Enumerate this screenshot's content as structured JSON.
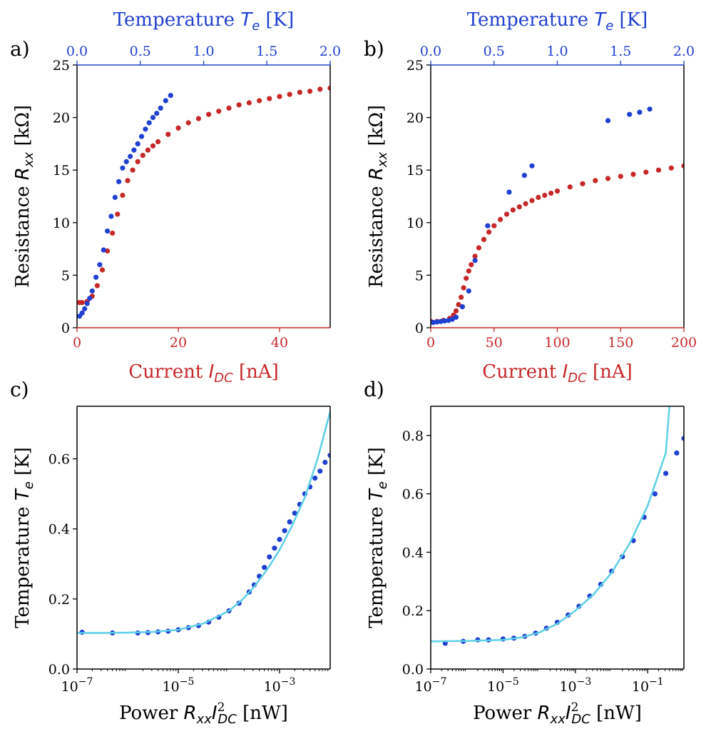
{
  "colors": {
    "red": "#c62828",
    "blue": "#2040d0",
    "cyan": "#5ccfe6",
    "black": "#000000"
  },
  "chart_data": [
    {
      "panel": "a)",
      "type": "scatter",
      "xlabel": "Current",
      "xlabel_sym": "I",
      "xlabel_sub": "DC",
      "xlabel_unit": "[nA]",
      "ylabel": "Resistance",
      "ylabel_sym": "R",
      "ylabel_sub": "xx",
      "ylabel_unit": "[kΩ]",
      "toplabel": "Temperature",
      "toplabel_sym": "T",
      "toplabel_sub": "e",
      "toplabel_unit": "[K]",
      "xlim": [
        0,
        50
      ],
      "ylim": [
        0,
        25
      ],
      "toplim": [
        0,
        2
      ],
      "xticks": [
        "0",
        "20",
        "40"
      ],
      "yticks": [
        "0",
        "5",
        "10",
        "15",
        "20",
        "25"
      ],
      "topticks": [
        "0.0",
        "0.5",
        "1.0",
        "1.5",
        "2.0"
      ],
      "series": [
        {
          "name": "R vs I_DC",
          "color": "red",
          "x": [
            0.5,
            1,
            2,
            3,
            4,
            5,
            6,
            7,
            8,
            9,
            10,
            11,
            12,
            13,
            14,
            15,
            16,
            18,
            20,
            22,
            24,
            26,
            28,
            30,
            32,
            34,
            36,
            38,
            40,
            42,
            44,
            46,
            48,
            50
          ],
          "y": [
            2.4,
            2.4,
            2.5,
            3.0,
            4.0,
            5.5,
            7.3,
            9.0,
            10.8,
            12.6,
            14.0,
            15.0,
            15.8,
            16.4,
            16.9,
            17.3,
            17.7,
            18.4,
            19.0,
            19.5,
            19.9,
            20.3,
            20.6,
            20.9,
            21.2,
            21.4,
            21.6,
            21.8,
            22.0,
            22.2,
            22.4,
            22.5,
            22.7,
            22.8
          ]
        },
        {
          "name": "R vs T_e",
          "color": "blue",
          "x_top": [
            0.02,
            0.04,
            0.06,
            0.08,
            0.1,
            0.12,
            0.15,
            0.18,
            0.21,
            0.24,
            0.27,
            0.3,
            0.33,
            0.36,
            0.39,
            0.42,
            0.45,
            0.48,
            0.51,
            0.54,
            0.57,
            0.6,
            0.63,
            0.66,
            0.7,
            0.74
          ],
          "y": [
            1.1,
            1.4,
            1.8,
            2.3,
            2.8,
            3.5,
            4.8,
            6.0,
            7.4,
            9.2,
            10.6,
            12.4,
            13.9,
            15.2,
            15.8,
            16.3,
            16.9,
            17.5,
            18.2,
            18.9,
            19.5,
            20.0,
            20.4,
            20.9,
            21.6,
            22.1
          ]
        }
      ]
    },
    {
      "panel": "b)",
      "type": "scatter",
      "xlabel": "Current",
      "xlabel_sym": "I",
      "xlabel_sub": "DC",
      "xlabel_unit": "[nA]",
      "ylabel": "Resistance",
      "ylabel_sym": "R",
      "ylabel_sub": "xx",
      "ylabel_unit": "[kΩ]",
      "toplabel": "Temperature",
      "toplabel_sym": "T",
      "toplabel_sub": "e",
      "toplabel_unit": "[K]",
      "xlim": [
        0,
        200
      ],
      "ylim": [
        0,
        25
      ],
      "toplim": [
        0,
        2
      ],
      "xticks": [
        "0",
        "50",
        "100",
        "150",
        "200"
      ],
      "yticks": [
        "0",
        "5",
        "10",
        "15",
        "20",
        "25"
      ],
      "topticks": [
        "0.0",
        "0.5",
        "1.0",
        "1.5",
        "2.0"
      ],
      "series": [
        {
          "name": "R vs I_DC",
          "color": "red",
          "x": [
            0,
            5,
            10,
            15,
            18,
            20,
            22,
            24,
            26,
            28,
            30,
            32,
            35,
            38,
            42,
            46,
            50,
            55,
            60,
            65,
            70,
            75,
            80,
            85,
            90,
            95,
            100,
            110,
            120,
            130,
            140,
            150,
            160,
            170,
            180,
            190,
            200
          ],
          "y": [
            0.6,
            0.6,
            0.7,
            0.9,
            1.2,
            1.6,
            2.2,
            2.9,
            3.8,
            4.7,
            5.4,
            6.0,
            6.8,
            7.6,
            8.4,
            9.1,
            9.7,
            10.3,
            10.8,
            11.2,
            11.5,
            11.8,
            12.1,
            12.4,
            12.6,
            12.8,
            13.0,
            13.4,
            13.7,
            14.0,
            14.2,
            14.4,
            14.6,
            14.8,
            15.0,
            15.2,
            15.4
          ]
        },
        {
          "name": "R vs T_e",
          "color": "blue",
          "x_top": [
            0.02,
            0.05,
            0.08,
            0.11,
            0.14,
            0.17,
            0.2,
            0.25,
            0.3,
            0.35,
            0.45,
            0.62,
            0.74,
            0.8,
            1.4,
            1.57,
            1.65,
            1.73
          ],
          "y": [
            0.5,
            0.55,
            0.6,
            0.65,
            0.7,
            0.8,
            1.0,
            2.0,
            3.5,
            6.4,
            9.7,
            12.9,
            14.5,
            15.4,
            19.7,
            20.3,
            20.5,
            20.8
          ]
        }
      ]
    },
    {
      "panel": "c)",
      "type": "scatter",
      "xscale": "log",
      "xlabel": "Power",
      "xlabel_sym": "R",
      "xlabel_sub": "xx",
      "xlabel_sym2": "I",
      "xlabel_sub2": "DC",
      "xlabel_sup2": "2",
      "xlabel_unit": "[nW]",
      "ylabel": "Temperature",
      "ylabel_sym": "T",
      "ylabel_sub": "e",
      "ylabel_unit": "[K]",
      "xlim_log10": [
        -7,
        -2
      ],
      "ylim": [
        0,
        0.75
      ],
      "xticks_exp": [
        "-7",
        "-5",
        "-3"
      ],
      "xticks_log10": [
        -7,
        -5,
        -3
      ],
      "yticks": [
        "0.0",
        "0.2",
        "0.4",
        "0.6"
      ],
      "series": [
        {
          "name": "data",
          "color": "blue",
          "log10x": [
            -6.9,
            -6.3,
            -5.8,
            -5.6,
            -5.4,
            -5.2,
            -5.0,
            -4.8,
            -4.6,
            -4.4,
            -4.2,
            -4.0,
            -3.8,
            -3.6,
            -3.5,
            -3.4,
            -3.3,
            -3.2,
            -3.1,
            -3.0,
            -2.9,
            -2.8,
            -2.7,
            -2.6,
            -2.5,
            -2.4,
            -2.3,
            -2.2,
            -2.1,
            -2.0
          ],
          "y": [
            0.105,
            0.103,
            0.103,
            0.104,
            0.106,
            0.108,
            0.112,
            0.118,
            0.124,
            0.134,
            0.148,
            0.166,
            0.188,
            0.22,
            0.24,
            0.265,
            0.29,
            0.32,
            0.345,
            0.37,
            0.395,
            0.42,
            0.445,
            0.47,
            0.5,
            0.52,
            0.545,
            0.565,
            0.59,
            0.61
          ]
        },
        {
          "name": "fit",
          "color": "cyan",
          "line": true,
          "log10x": [
            -7.0,
            -6.5,
            -6.0,
            -5.5,
            -5.0,
            -4.5,
            -4.0,
            -3.75,
            -3.5,
            -3.25,
            -3.0,
            -2.75,
            -2.5,
            -2.25,
            -2.0
          ],
          "y": [
            0.103,
            0.103,
            0.104,
            0.106,
            0.112,
            0.13,
            0.166,
            0.196,
            0.235,
            0.283,
            0.34,
            0.41,
            0.49,
            0.6,
            0.735
          ]
        }
      ]
    },
    {
      "panel": "d)",
      "type": "scatter",
      "xscale": "log",
      "xlabel": "Power",
      "xlabel_sym": "R",
      "xlabel_sub": "xx",
      "xlabel_sym2": "I",
      "xlabel_sub2": "DC",
      "xlabel_sup2": "2",
      "xlabel_unit": "[nW]",
      "ylabel": "Temperature",
      "ylabel_sym": "T",
      "ylabel_sub": "e",
      "ylabel_unit": "[K]",
      "xlim_log10": [
        -7,
        0
      ],
      "ylim": [
        0,
        0.9
      ],
      "xticks_exp": [
        "-7",
        "-5",
        "-3",
        "-1"
      ],
      "xticks_log10": [
        -7,
        -5,
        -3,
        -1
      ],
      "yticks": [
        "0.0",
        "0.2",
        "0.4",
        "0.6",
        "0.8"
      ],
      "series": [
        {
          "name": "data",
          "color": "blue",
          "log10x": [
            -6.6,
            -6.1,
            -5.7,
            -5.4,
            -5.0,
            -4.7,
            -4.4,
            -4.1,
            -3.8,
            -3.5,
            -3.2,
            -2.9,
            -2.6,
            -2.3,
            -2.0,
            -1.7,
            -1.4,
            -1.1,
            -0.8,
            -0.5,
            -0.2,
            0.0
          ],
          "y": [
            0.088,
            0.095,
            0.1,
            0.1,
            0.103,
            0.106,
            0.112,
            0.123,
            0.14,
            0.16,
            0.185,
            0.215,
            0.25,
            0.29,
            0.335,
            0.385,
            0.44,
            0.52,
            0.6,
            0.67,
            0.74,
            0.79
          ]
        },
        {
          "name": "fit",
          "color": "cyan",
          "line": true,
          "log10x": [
            -7.0,
            -6.0,
            -5.0,
            -4.5,
            -4.0,
            -3.5,
            -3.0,
            -2.5,
            -2.0,
            -1.5,
            -1.0,
            -0.5,
            -0.4
          ],
          "y": [
            0.095,
            0.096,
            0.1,
            0.108,
            0.125,
            0.155,
            0.2,
            0.255,
            0.33,
            0.43,
            0.56,
            0.74,
            0.9
          ]
        }
      ]
    }
  ]
}
